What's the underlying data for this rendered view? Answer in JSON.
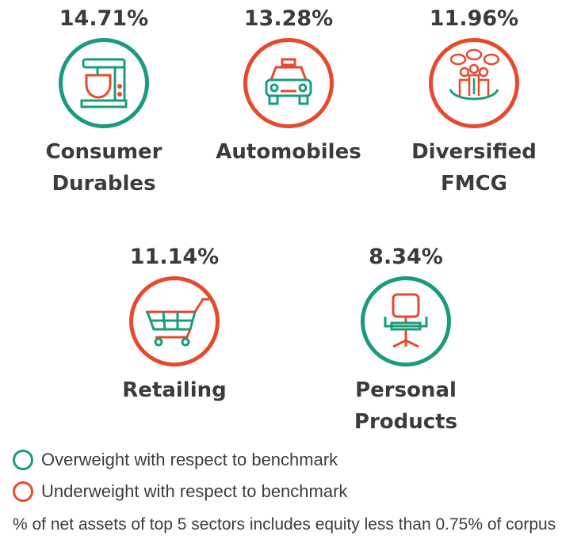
{
  "colors": {
    "overweight": "#1a9c7c",
    "underweight": "#e8492c"
  },
  "sectors": [
    {
      "pct": "14.71%",
      "label": "Consumer Durables",
      "weight": "overweight",
      "icon": "mixer-icon"
    },
    {
      "pct": "13.28%",
      "label": "Automobiles",
      "weight": "underweight",
      "icon": "car-icon"
    },
    {
      "pct": "11.96%",
      "label": "Diversified FMCG",
      "weight": "underweight",
      "icon": "people-shopping-icon"
    },
    {
      "pct": "11.14%",
      "label": "Retailing",
      "weight": "underweight",
      "icon": "shopping-cart-icon"
    },
    {
      "pct": "8.34%",
      "label": "Personal Products",
      "weight": "overweight",
      "icon": "office-chair-icon"
    }
  ],
  "legend": {
    "overweight": "Overweight with respect to benchmark",
    "underweight": "Underweight with respect to benchmark"
  },
  "note": "% of net assets of top 5 sectors includes equity less than 0.75% of corpus"
}
